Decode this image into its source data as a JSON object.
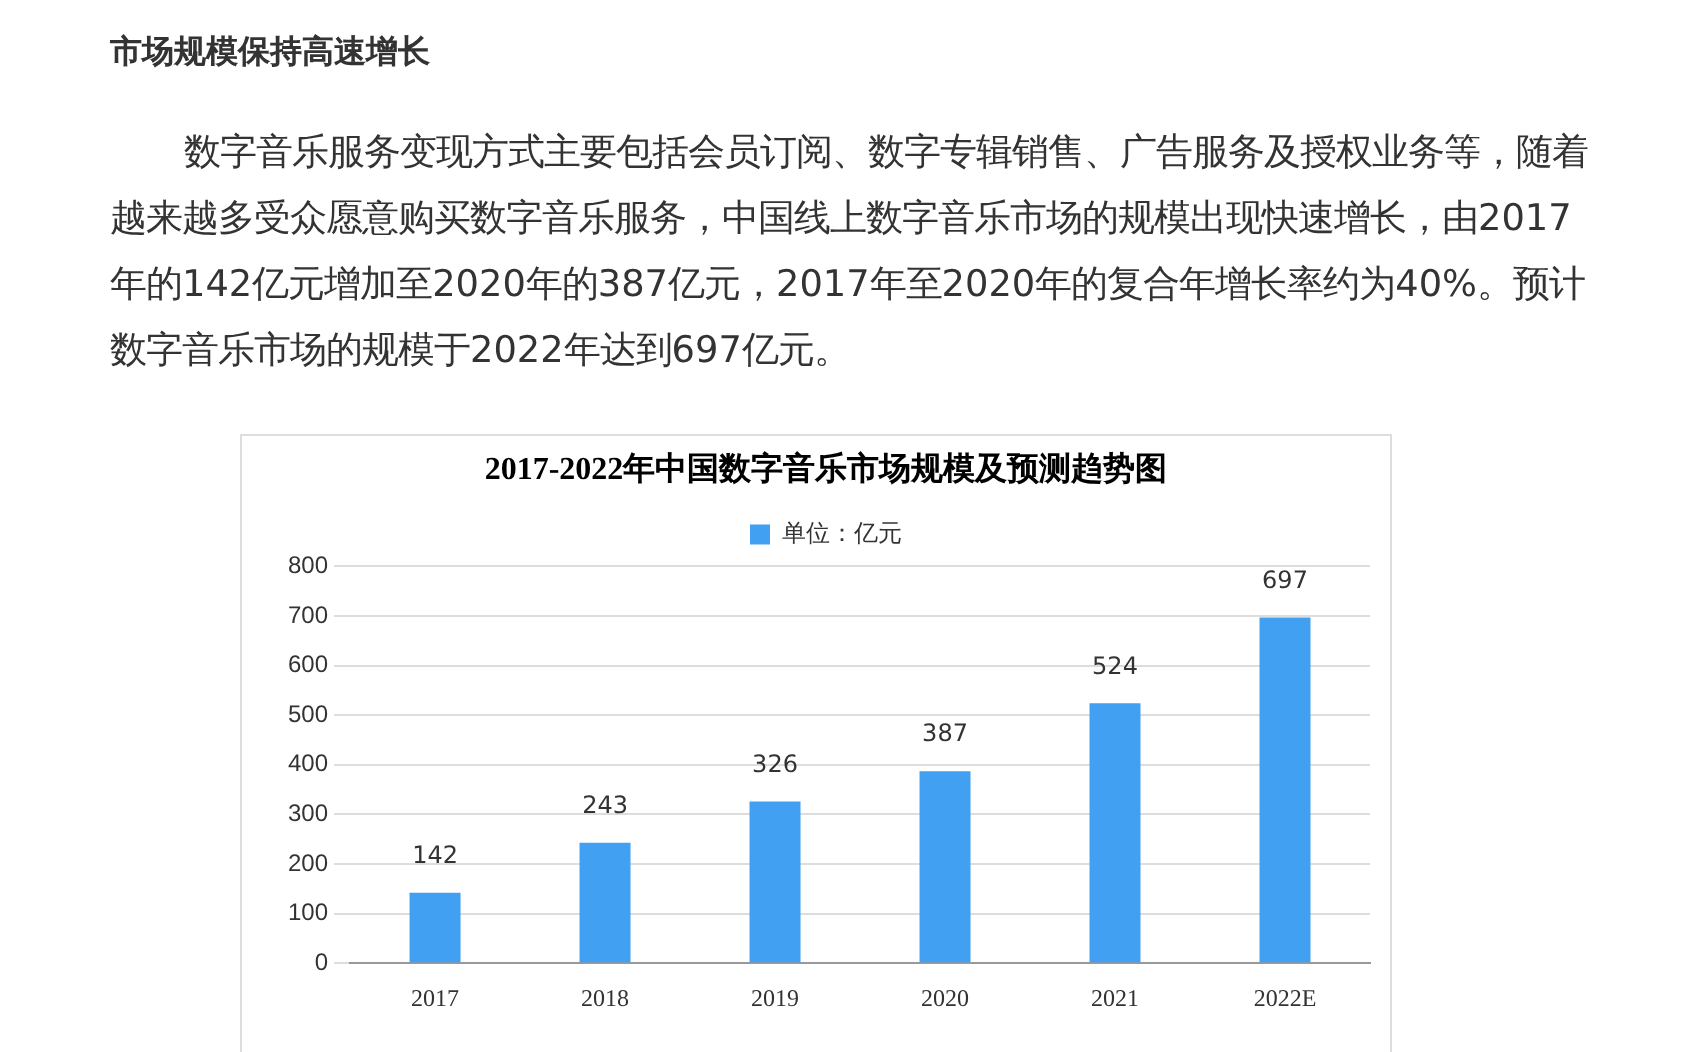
{
  "chart_data": {
    "type": "bar",
    "title": "2017-2022年中国数字音乐市场规模及预测趋势图",
    "annotations": [
      "市场规模保持高速增长",
      "数字音乐服务变现方式主要包括会员订阅、数字专辑销售、广告服务及授权业务等，随着越来越多受众愿意购买数字音乐服务，中国线上数字音乐市场的规模出现快速增长，由2017年的142亿元增加至2020年的387亿元，2017年至2020年的复合年增长率约为40%。预计数字音乐市场的规模于2022年达到697亿元。"
    ],
    "categories": [
      "2017",
      "2018",
      "2019",
      "2020",
      "2021",
      "2022E"
    ],
    "series": [
      {
        "name": "单位：亿元",
        "color": "#42a0f2",
        "values": [
          142,
          243,
          326,
          387,
          524,
          697
        ]
      }
    ],
    "ylim": [
      0,
      800
    ],
    "yticks": [
      0,
      100,
      200,
      300,
      400,
      500,
      600,
      700,
      800
    ],
    "grid": "y",
    "legend": "top",
    "data_labels": true
  }
}
